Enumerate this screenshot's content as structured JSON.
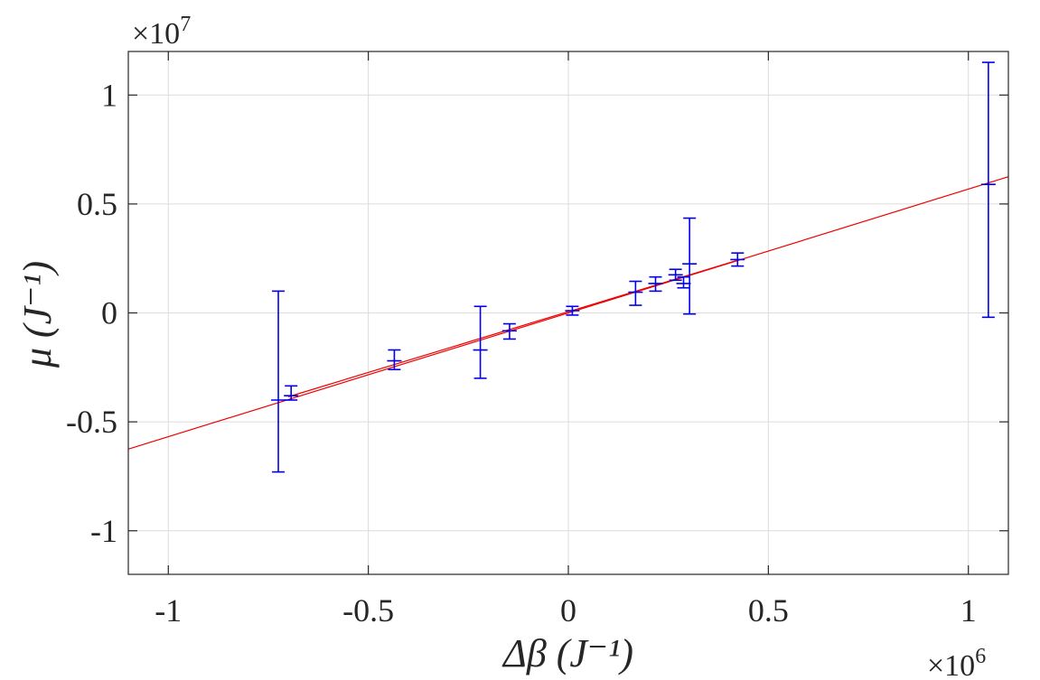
{
  "chart_data": {
    "type": "scatter",
    "xlabel": "Δβ (J⁻¹)",
    "ylabel": "μ (J⁻¹)",
    "x_exponent": "×10",
    "x_exponent_power": "6",
    "y_exponent": "×10",
    "y_exponent_power": "7",
    "xlim": [
      -1.1,
      1.1
    ],
    "ylim": [
      -1.2,
      1.2
    ],
    "xticks": [
      -1,
      -0.5,
      0,
      0.5,
      1
    ],
    "xtick_labels": [
      "-1",
      "-0.5",
      "0",
      "0.5",
      "1"
    ],
    "yticks": [
      -1,
      -0.5,
      0,
      0.5,
      1
    ],
    "ytick_labels": [
      "-1",
      "-0.5",
      "0",
      "0.5",
      "1"
    ],
    "grid": true,
    "colors": {
      "points": "#0000ee",
      "fit": "#ee0000",
      "grid": "#dcdcdc",
      "axes": "#262626"
    },
    "points": [
      {
        "x": -0.725,
        "y": -0.4,
        "ylo": -0.73,
        "yhi": 0.1
      },
      {
        "x": -0.693,
        "y": -0.38,
        "ylo": -0.4,
        "yhi": -0.335
      },
      {
        "x": -0.435,
        "y": -0.22,
        "ylo": -0.26,
        "yhi": -0.17
      },
      {
        "x": -0.22,
        "y": -0.17,
        "ylo": -0.3,
        "yhi": 0.03
      },
      {
        "x": -0.147,
        "y": -0.082,
        "ylo": -0.12,
        "yhi": -0.05
      },
      {
        "x": 0.01,
        "y": 0.01,
        "ylo": -0.01,
        "yhi": 0.03
      },
      {
        "x": 0.168,
        "y": 0.095,
        "ylo": 0.035,
        "yhi": 0.145
      },
      {
        "x": 0.218,
        "y": 0.135,
        "ylo": 0.1,
        "yhi": 0.165
      },
      {
        "x": 0.268,
        "y": 0.175,
        "ylo": 0.15,
        "yhi": 0.2
      },
      {
        "x": 0.288,
        "y": 0.135,
        "ylo": 0.115,
        "yhi": 0.165
      },
      {
        "x": 0.303,
        "y": 0.225,
        "ylo": -0.005,
        "yhi": 0.435
      },
      {
        "x": 0.423,
        "y": 0.245,
        "ylo": 0.215,
        "yhi": 0.275
      },
      {
        "x": 1.05,
        "y": 0.59,
        "ylo": -0.02,
        "yhi": 1.15
      }
    ],
    "fit_lines": [
      {
        "x": [
          -1.1,
          1.1
        ],
        "y": [
          -0.625,
          0.625
        ]
      },
      {
        "x": [
          -0.7,
          0.42
        ],
        "y": [
          -0.385,
          0.24
        ]
      }
    ]
  }
}
